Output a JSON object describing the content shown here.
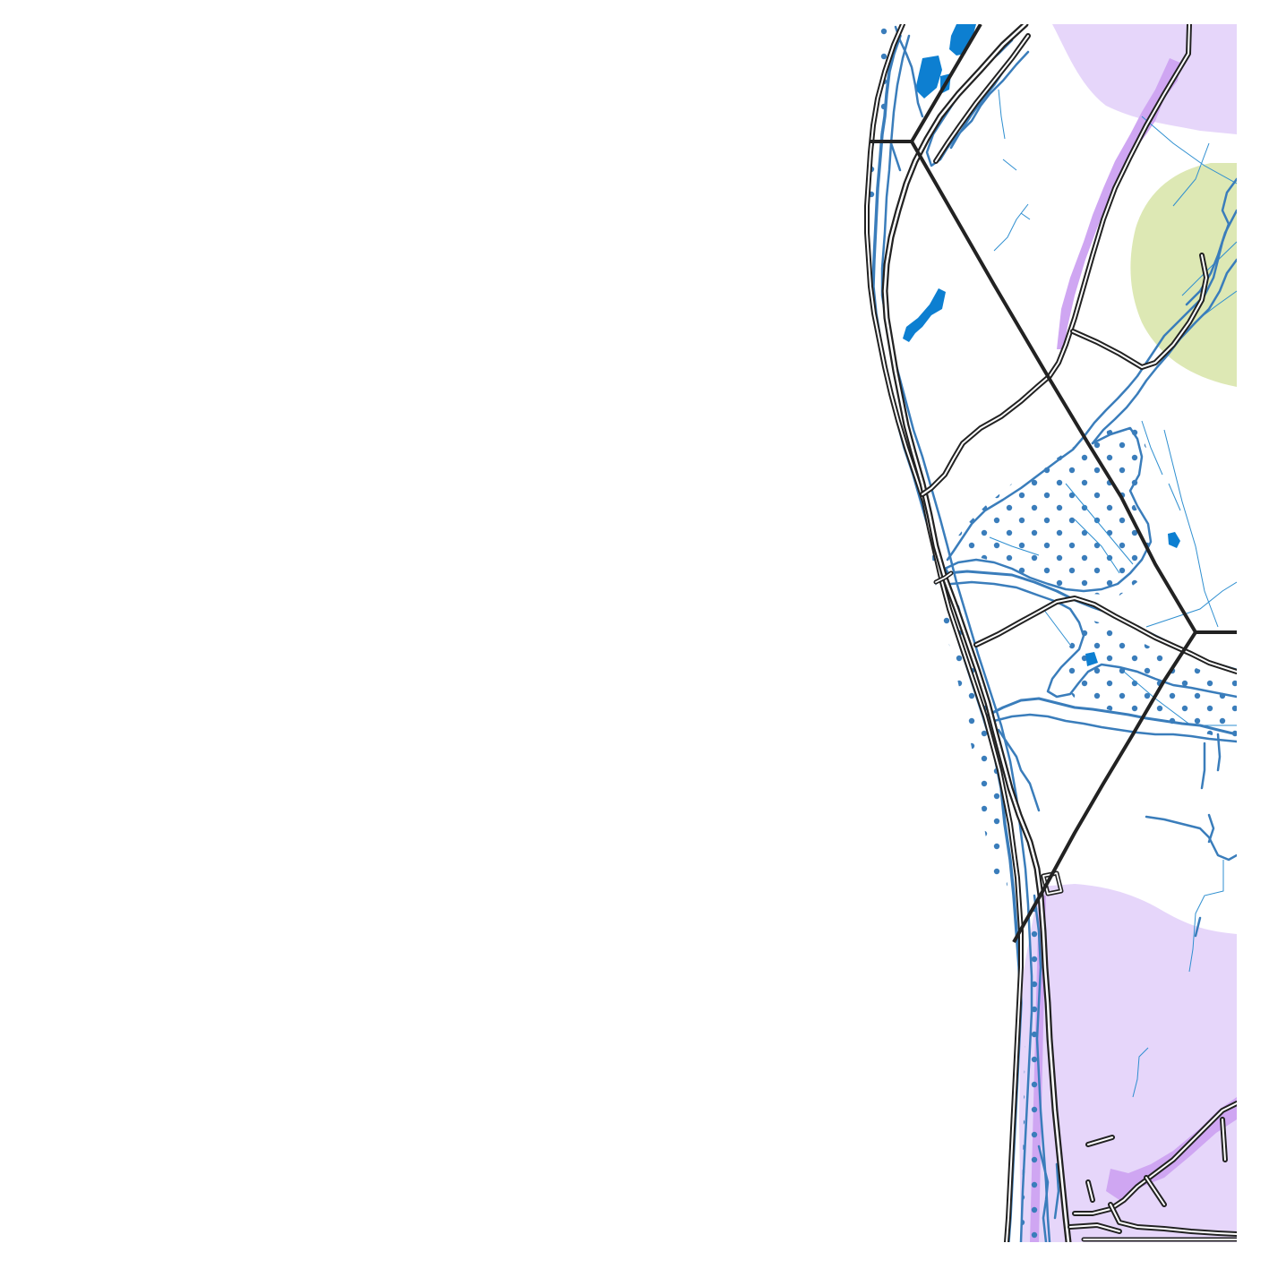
{
  "map": {
    "colors": {
      "background": "#ffffff",
      "residential_zone": "#e6d6fa",
      "residential_edge": "#cfa6f2",
      "park_zone": "#dde8b4",
      "river": "#3a7dbb",
      "stream": "#2f8fd0",
      "lake": "#0d7fd1",
      "wetland_dots": "#3a7dbb",
      "road_casing": "#222222",
      "road_fill": "#ffffff",
      "admin_boundary": "#222222"
    },
    "layers": [
      "residential-zone",
      "park-zone",
      "wetland",
      "lakes",
      "streams",
      "rivers",
      "roads",
      "admin-boundaries"
    ],
    "labels": []
  }
}
